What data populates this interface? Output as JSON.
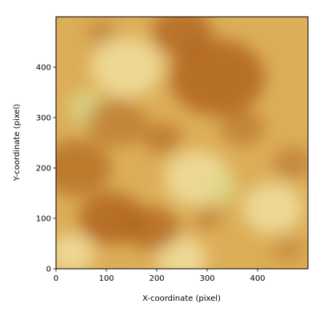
{
  "chart_data": {
    "type": "heatmap",
    "title": "",
    "xlabel": "X-coordinate (pixel)",
    "ylabel": "Y-coordinate (pixel)",
    "xlim": [
      0,
      500
    ],
    "ylim": [
      0,
      500
    ],
    "x_ticks": [
      0,
      100,
      200,
      300,
      400
    ],
    "y_ticks": [
      0,
      100,
      200,
      300,
      400
    ],
    "grid": false,
    "legend": "none",
    "colors": {
      "light": "#f0dc9a",
      "mid": "#dcae58",
      "dark": "#b0641e",
      "pale_green": "#d8d88a"
    },
    "dark_regions": [
      {
        "x": 320,
        "y": 380,
        "spread": 95,
        "intensity": 0.85
      },
      {
        "x": 250,
        "y": 470,
        "spread": 60,
        "intensity": 0.8
      },
      {
        "x": 110,
        "y": 100,
        "spread": 65,
        "intensity": 0.85
      },
      {
        "x": 190,
        "y": 80,
        "spread": 55,
        "intensity": 0.75
      },
      {
        "x": 40,
        "y": 200,
        "spread": 70,
        "intensity": 0.7
      },
      {
        "x": 120,
        "y": 290,
        "spread": 60,
        "intensity": 0.55
      },
      {
        "x": 210,
        "y": 260,
        "spread": 40,
        "intensity": 0.6
      },
      {
        "x": 370,
        "y": 280,
        "spread": 45,
        "intensity": 0.55
      },
      {
        "x": 470,
        "y": 210,
        "spread": 40,
        "intensity": 0.5
      },
      {
        "x": 300,
        "y": 100,
        "spread": 30,
        "intensity": 0.45
      },
      {
        "x": 90,
        "y": 470,
        "spread": 30,
        "intensity": 0.45
      },
      {
        "x": 460,
        "y": 40,
        "spread": 35,
        "intensity": 0.35
      }
    ],
    "light_regions": [
      {
        "x": 140,
        "y": 400,
        "spread": 70
      },
      {
        "x": 280,
        "y": 180,
        "spread": 65
      },
      {
        "x": 430,
        "y": 120,
        "spread": 60
      },
      {
        "x": 30,
        "y": 30,
        "spread": 45
      },
      {
        "x": 250,
        "y": 20,
        "spread": 50
      }
    ]
  }
}
